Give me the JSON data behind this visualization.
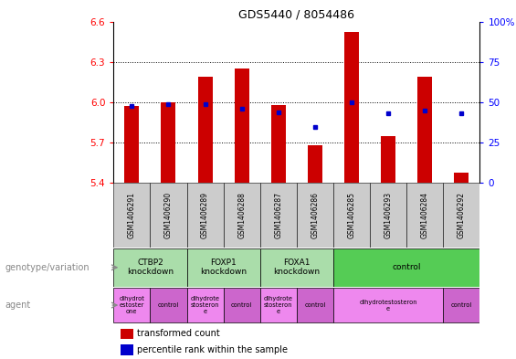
{
  "title": "GDS5440 / 8054486",
  "samples": [
    "GSM1406291",
    "GSM1406290",
    "GSM1406289",
    "GSM1406288",
    "GSM1406287",
    "GSM1406286",
    "GSM1406285",
    "GSM1406293",
    "GSM1406284",
    "GSM1406292"
  ],
  "red_values": [
    5.97,
    6.0,
    6.19,
    6.25,
    5.98,
    5.68,
    6.52,
    5.75,
    6.19,
    5.48
  ],
  "blue_values": [
    48,
    49,
    49,
    46,
    44,
    35,
    50,
    43,
    45,
    43
  ],
  "ylim_left": [
    5.4,
    6.6
  ],
  "ylim_right": [
    0,
    100
  ],
  "yticks_left": [
    5.4,
    5.7,
    6.0,
    6.3,
    6.6
  ],
  "yticks_right": [
    0,
    25,
    50,
    75,
    100
  ],
  "ytick_labels_right": [
    "0",
    "25",
    "50",
    "75",
    "100%"
  ],
  "bar_bottom": 5.4,
  "bar_color": "#cc0000",
  "dot_color": "#0000cc",
  "bar_width": 0.4,
  "genotype_groups": [
    {
      "label": "CTBP2\nknockdown",
      "start": 0,
      "end": 2,
      "color": "#aaddaa"
    },
    {
      "label": "FOXP1\nknockdown",
      "start": 2,
      "end": 4,
      "color": "#aaddaa"
    },
    {
      "label": "FOXA1\nknockdown",
      "start": 4,
      "end": 6,
      "color": "#aaddaa"
    },
    {
      "label": "control",
      "start": 6,
      "end": 10,
      "color": "#55cc55"
    }
  ],
  "agent_groups": [
    {
      "label": "dihydrot\nestoster\none",
      "start": 0,
      "end": 1,
      "color": "#ee88ee"
    },
    {
      "label": "control",
      "start": 1,
      "end": 2,
      "color": "#cc66cc"
    },
    {
      "label": "dihydrote\nstosteron\ne",
      "start": 2,
      "end": 3,
      "color": "#ee88ee"
    },
    {
      "label": "control",
      "start": 3,
      "end": 4,
      "color": "#cc66cc"
    },
    {
      "label": "dihydrote\nstosteron\ne",
      "start": 4,
      "end": 5,
      "color": "#ee88ee"
    },
    {
      "label": "control",
      "start": 5,
      "end": 6,
      "color": "#cc66cc"
    },
    {
      "label": "dihydrotestosteron\ne",
      "start": 6,
      "end": 9,
      "color": "#ee88ee"
    },
    {
      "label": "control",
      "start": 9,
      "end": 10,
      "color": "#cc66cc"
    }
  ],
  "legend_red": "transformed count",
  "legend_blue": "percentile rank within the sample",
  "label_genotype": "genotype/variation",
  "label_agent": "agent",
  "sample_box_color": "#cccccc",
  "left_label_color": "#888888",
  "arrow_color": "#888888"
}
